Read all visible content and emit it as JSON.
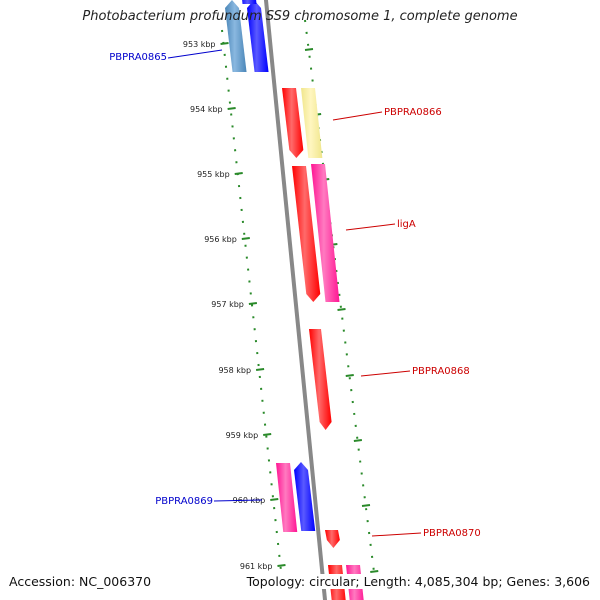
{
  "title": "Photobacterium profundum SS9 chromosome 1, complete genome",
  "footer": {
    "accession": "Accession: NC_006370",
    "topology": "Topology: circular; Length: 4,085,304 bp; Genes: 3,606"
  },
  "colors": {
    "backbone": "#888888",
    "ticks": "#2a8a2a",
    "label_forward": "#cc0000",
    "label_reverse": "#0000cc",
    "red": "#ff0000",
    "pink": "#ff1493",
    "yellow": "#f0e68c",
    "blue": "#0000ff",
    "steel": "#4a86b8"
  },
  "ticks": [
    {
      "label": "953 kbp"
    },
    {
      "label": "954 kbp"
    },
    {
      "label": "955 kbp"
    },
    {
      "label": "956 kbp"
    },
    {
      "label": "957 kbp"
    },
    {
      "label": "958 kbp"
    },
    {
      "label": "959 kbp"
    },
    {
      "label": "960 kbp"
    },
    {
      "label": "961 kbp"
    }
  ],
  "gene_labels": [
    {
      "text": "PBPRA0865",
      "strand": "reverse"
    },
    {
      "text": "PBPRA0866",
      "strand": "forward"
    },
    {
      "text": "ligA",
      "strand": "forward"
    },
    {
      "text": "PBPRA0868",
      "strand": "forward"
    },
    {
      "text": "PBPRA0869",
      "strand": "reverse"
    },
    {
      "text": "PBPRA0870",
      "strand": "forward"
    }
  ]
}
